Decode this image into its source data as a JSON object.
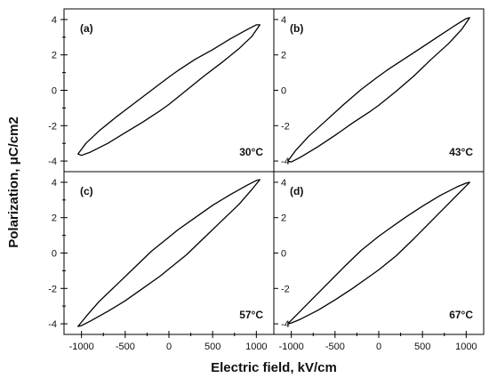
{
  "chart_data": {
    "type": "line",
    "xlabel": "Electric field, kV/cm",
    "ylabel": "Polarization, μC/cm2",
    "xlim": [
      -1200,
      1200
    ],
    "ylim": [
      -4.6,
      4.6
    ],
    "x_ticks": [
      -1000,
      -500,
      0,
      500,
      1000
    ],
    "x_tick_labels": [
      "-1000",
      "-500",
      "0",
      "500",
      "1000"
    ],
    "y_ticks": [
      -4,
      -2,
      0,
      2,
      4
    ],
    "y_tick_labels": [
      "-4",
      "-2",
      "0",
      "2",
      "4"
    ],
    "line_color": "#000000",
    "panels": [
      {
        "label": "(a)",
        "temperature": "30°C",
        "upper_branch": [
          [
            1040,
            3.7
          ],
          [
            1000,
            3.7
          ],
          [
            900,
            3.45
          ],
          [
            700,
            2.9
          ],
          [
            500,
            2.3
          ],
          [
            300,
            1.75
          ],
          [
            100,
            1.1
          ],
          [
            0,
            0.75
          ],
          [
            -200,
            0.0
          ],
          [
            -400,
            -0.75
          ],
          [
            -600,
            -1.5
          ],
          [
            -800,
            -2.3
          ],
          [
            -950,
            -3.0
          ],
          [
            -1040,
            -3.6
          ]
        ],
        "lower_branch": [
          [
            -1040,
            -3.6
          ],
          [
            -1000,
            -3.68
          ],
          [
            -900,
            -3.5
          ],
          [
            -700,
            -3.0
          ],
          [
            -500,
            -2.4
          ],
          [
            -300,
            -1.8
          ],
          [
            -100,
            -1.15
          ],
          [
            0,
            -0.8
          ],
          [
            200,
            0.0
          ],
          [
            400,
            0.8
          ],
          [
            600,
            1.55
          ],
          [
            800,
            2.35
          ],
          [
            950,
            3.05
          ],
          [
            1040,
            3.7
          ]
        ]
      },
      {
        "label": "(b)",
        "temperature": "43°C",
        "upper_branch": [
          [
            1040,
            4.1
          ],
          [
            1000,
            4.05
          ],
          [
            900,
            3.75
          ],
          [
            700,
            3.1
          ],
          [
            500,
            2.45
          ],
          [
            300,
            1.8
          ],
          [
            100,
            1.15
          ],
          [
            0,
            0.8
          ],
          [
            -200,
            0.05
          ],
          [
            -400,
            -0.8
          ],
          [
            -600,
            -1.7
          ],
          [
            -800,
            -2.6
          ],
          [
            -950,
            -3.4
          ],
          [
            -1040,
            -4.0
          ]
        ],
        "lower_branch": [
          [
            -1040,
            -4.0
          ],
          [
            -1000,
            -4.05
          ],
          [
            -900,
            -3.8
          ],
          [
            -700,
            -3.2
          ],
          [
            -500,
            -2.55
          ],
          [
            -300,
            -1.85
          ],
          [
            -100,
            -1.2
          ],
          [
            0,
            -0.85
          ],
          [
            200,
            -0.05
          ],
          [
            400,
            0.8
          ],
          [
            600,
            1.75
          ],
          [
            800,
            2.65
          ],
          [
            950,
            3.45
          ],
          [
            1040,
            4.1
          ]
        ]
      },
      {
        "label": "(c)",
        "temperature": "57°C",
        "upper_branch": [
          [
            1040,
            4.15
          ],
          [
            1000,
            4.1
          ],
          [
            900,
            3.85
          ],
          [
            700,
            3.3
          ],
          [
            500,
            2.7
          ],
          [
            300,
            2.0
          ],
          [
            100,
            1.3
          ],
          [
            0,
            0.9
          ],
          [
            -200,
            0.1
          ],
          [
            -400,
            -0.85
          ],
          [
            -600,
            -1.8
          ],
          [
            -800,
            -2.75
          ],
          [
            -950,
            -3.6
          ],
          [
            -1040,
            -4.15
          ]
        ],
        "lower_branch": [
          [
            -1040,
            -4.15
          ],
          [
            -1000,
            -4.1
          ],
          [
            -900,
            -3.85
          ],
          [
            -700,
            -3.3
          ],
          [
            -500,
            -2.7
          ],
          [
            -300,
            -2.0
          ],
          [
            -100,
            -1.3
          ],
          [
            0,
            -0.9
          ],
          [
            200,
            -0.1
          ],
          [
            400,
            0.85
          ],
          [
            600,
            1.8
          ],
          [
            800,
            2.75
          ],
          [
            950,
            3.6
          ],
          [
            1040,
            4.15
          ]
        ]
      },
      {
        "label": "(d)",
        "temperature": "67°C",
        "upper_branch": [
          [
            1040,
            4.0
          ],
          [
            1000,
            3.95
          ],
          [
            900,
            3.75
          ],
          [
            700,
            3.25
          ],
          [
            500,
            2.65
          ],
          [
            300,
            2.0
          ],
          [
            100,
            1.3
          ],
          [
            0,
            0.95
          ],
          [
            -200,
            0.15
          ],
          [
            -400,
            -0.8
          ],
          [
            -600,
            -1.8
          ],
          [
            -800,
            -2.8
          ],
          [
            -950,
            -3.55
          ],
          [
            -1040,
            -4.0
          ]
        ],
        "lower_branch": [
          [
            -1040,
            -4.0
          ],
          [
            -1000,
            -3.95
          ],
          [
            -900,
            -3.75
          ],
          [
            -700,
            -3.25
          ],
          [
            -500,
            -2.65
          ],
          [
            -300,
            -2.0
          ],
          [
            -100,
            -1.3
          ],
          [
            0,
            -0.95
          ],
          [
            200,
            -0.15
          ],
          [
            400,
            0.8
          ],
          [
            600,
            1.8
          ],
          [
            800,
            2.8
          ],
          [
            950,
            3.55
          ],
          [
            1040,
            4.0
          ]
        ]
      }
    ]
  }
}
